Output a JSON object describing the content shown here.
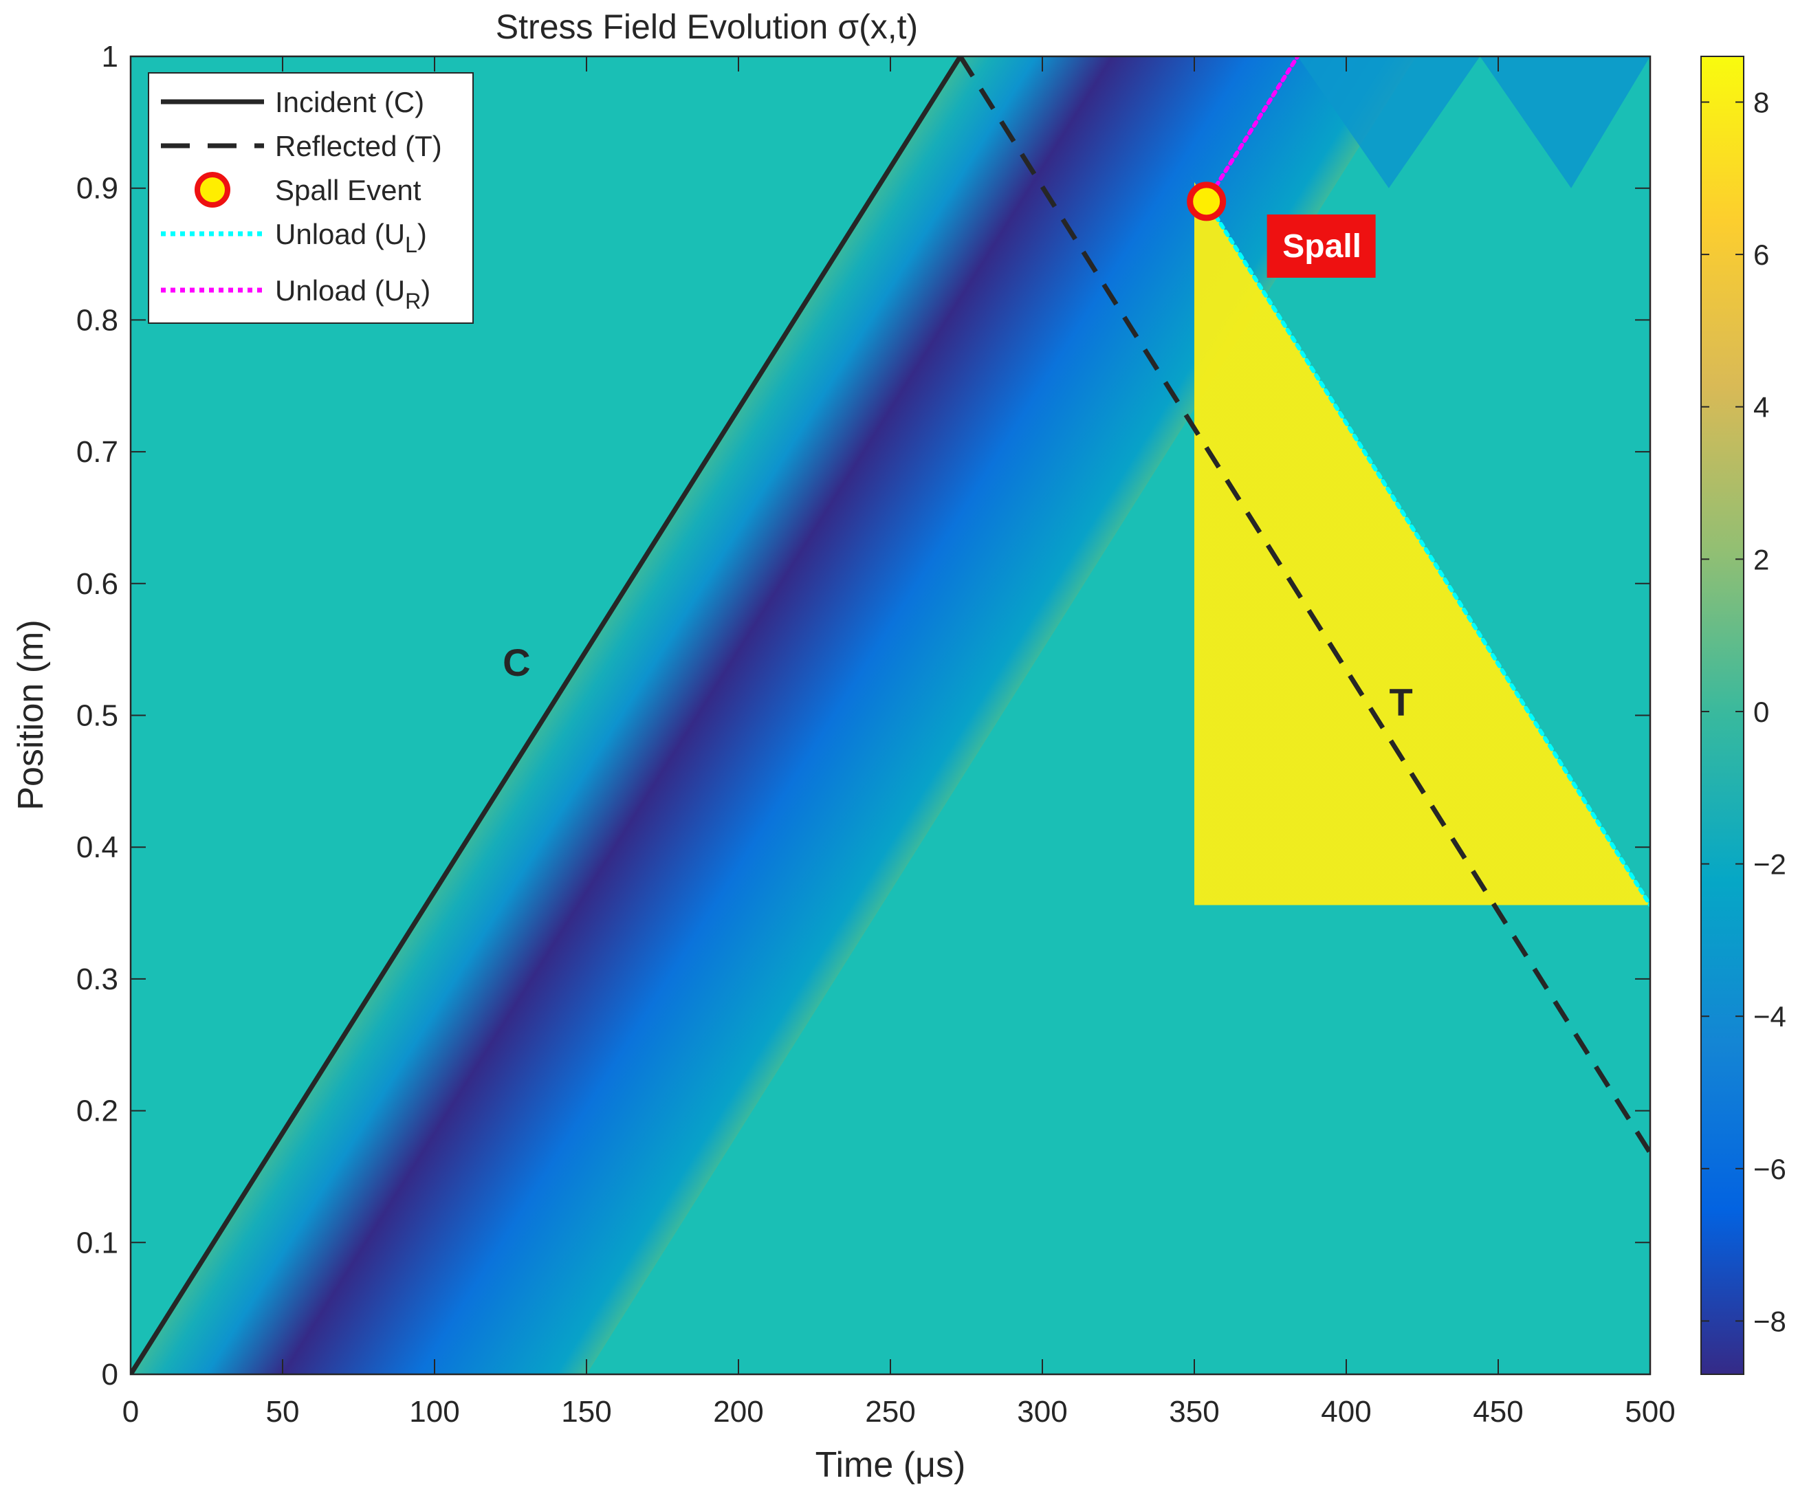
{
  "chart_data": {
    "type": "heatmap",
    "title": "Stress Field Evolution σ(x,t)",
    "xlabel": "Time (μs)",
    "ylabel": "Position (m)",
    "xlim": [
      0,
      500
    ],
    "ylim": [
      0,
      1
    ],
    "clim": [
      -8.7,
      8.6
    ],
    "colormap": "parula",
    "xticks": [
      0,
      50,
      100,
      150,
      200,
      250,
      300,
      350,
      400,
      450,
      500
    ],
    "xtick_labels": [
      "0",
      "50",
      "100",
      "150",
      "200",
      "250",
      "300",
      "350",
      "400",
      "450",
      "500"
    ],
    "yticks": [
      0,
      0.1,
      0.2,
      0.3,
      0.4,
      0.5,
      0.6,
      0.7,
      0.8,
      0.9,
      1
    ],
    "ytick_labels": [
      "0",
      "0.1",
      "0.2",
      "0.3",
      "0.4",
      "0.5",
      "0.6",
      "0.7",
      "0.8",
      "0.9",
      "1"
    ],
    "colorbar_ticks": [
      -8,
      -6,
      -4,
      -2,
      0,
      2,
      4,
      6,
      8
    ],
    "colorbar_labels": [
      "−8",
      "−6",
      "−4",
      "−2",
      "0",
      "2",
      "4",
      "6",
      "8"
    ],
    "lines": [
      {
        "name": "Incident (C)",
        "style": "solid",
        "color": "#262626",
        "x": [
          0,
          273
        ],
        "y": [
          0,
          1
        ]
      },
      {
        "name": "Reflected (T)",
        "style": "dashed",
        "color": "#262626",
        "x": [
          273,
          500
        ],
        "y": [
          1,
          0.168
        ]
      },
      {
        "name": "Unload (U_L)",
        "style": "dotted",
        "color": "#00ffff",
        "x": [
          354,
          500
        ],
        "y": [
          0.89,
          0.356
        ]
      },
      {
        "name": "Unload (U_R)",
        "style": "dotted",
        "color": "#ff00ff",
        "x": [
          354,
          384
        ],
        "y": [
          0.89,
          1
        ]
      }
    ],
    "spall_event": {
      "name": "Spall Event",
      "x": 354,
      "y": 0.89
    },
    "legend": {
      "placement": "top-left",
      "entries": [
        {
          "label": "Incident (C)",
          "kind": "solid"
        },
        {
          "label": "Reflected (T)",
          "kind": "dashed"
        },
        {
          "label": "Spall Event",
          "kind": "marker"
        },
        {
          "label": "Unload (U",
          "sub": "L",
          "suffix": ")",
          "kind": "cyan"
        },
        {
          "label": "Unload (U",
          "sub": "R",
          "suffix": ")",
          "kind": "magenta"
        }
      ]
    },
    "annotations": [
      {
        "text": "C",
        "x": 127,
        "y": 0.53
      },
      {
        "text": "T",
        "x": 418,
        "y": 0.5
      },
      {
        "text": "Spall",
        "x": 392,
        "y": 0.855,
        "box": true
      }
    ],
    "field_bands": {
      "compression_peak": -8.7,
      "compression_wave_speed_per_us": 0.003663,
      "compression_offset_us": [
        0,
        10,
        25,
        50,
        95,
        140,
        150
      ],
      "compression_values": [
        0,
        -1.5,
        -3.5,
        -8.7,
        -5.5,
        -2.5,
        0
      ],
      "tension_peak": 8.6,
      "tension_offset_us": [
        0,
        15,
        35,
        60,
        90,
        150
      ],
      "tension_values": [
        8.0,
        8.6,
        6.5,
        3.5,
        1.0,
        0
      ]
    }
  }
}
